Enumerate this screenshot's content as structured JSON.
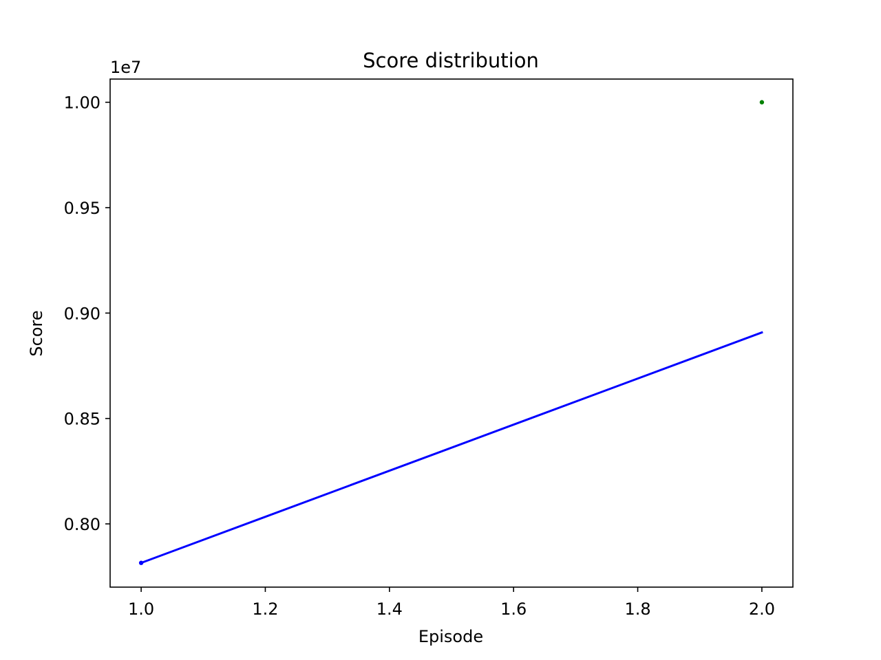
{
  "chart_data": {
    "type": "line",
    "title": "Score distribution",
    "xlabel": "Episode",
    "ylabel": "Score",
    "y_offset_label": "1e7",
    "xlim": [
      0.95,
      2.05
    ],
    "ylim": [
      7700000.0,
      10110000.0
    ],
    "x_ticks": [
      1.0,
      1.2,
      1.4,
      1.6,
      1.8,
      2.0
    ],
    "x_tick_labels": [
      "1.0",
      "1.2",
      "1.4",
      "1.6",
      "1.8",
      "2.0"
    ],
    "y_ticks": [
      8000000.0,
      8500000.0,
      9000000.0,
      9500000.0,
      10000000.0
    ],
    "y_tick_labels": [
      "0.80",
      "0.85",
      "0.90",
      "0.95",
      "1.00"
    ],
    "grid": false,
    "series": [
      {
        "style": "line",
        "color": "#0000ff",
        "x": [
          1.0,
          2.0
        ],
        "y": [
          7815000.0,
          8908000.0
        ]
      },
      {
        "style": "points",
        "color": "#0000ff",
        "x": [
          1.0
        ],
        "y": [
          7815000.0
        ]
      },
      {
        "style": "points",
        "color": "#008000",
        "x": [
          2.0
        ],
        "y": [
          10000000.0
        ]
      }
    ]
  }
}
